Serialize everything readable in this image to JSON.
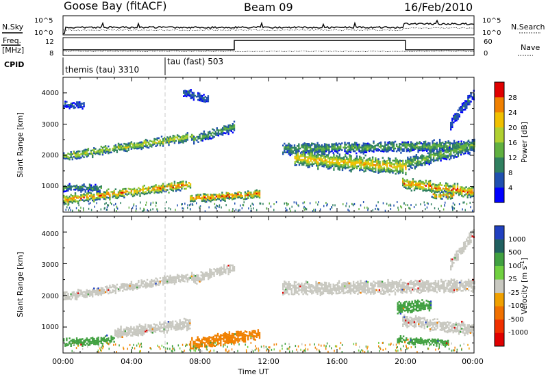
{
  "header": {
    "station": "Goose Bay (fitACF)",
    "beam": "Beam 09",
    "date": "16/Feb/2010"
  },
  "strips": {
    "nsky_label": "N.Sky",
    "nsearch_label": "N.Search",
    "freq_label_line1": "Freq.",
    "freq_label_line2": "[MHz]",
    "nave_label": "Nave",
    "cpid_label": "CPID",
    "noise_ticks": [
      "10^5",
      "10^0"
    ],
    "freq_ticks": [
      "12",
      "8"
    ],
    "nave_ticks": [
      "60",
      "0"
    ],
    "cpid_segments": [
      {
        "label": "themis (tau) 3310",
        "start_hour": 0,
        "end_hour": 6
      },
      {
        "label": "tau (fast) 503",
        "start_hour": 6,
        "end_hour": 24
      }
    ],
    "nave_series": [
      {
        "start_hour": 0,
        "end_hour": 10,
        "level": 18
      },
      {
        "start_hour": 10,
        "end_hour": 20,
        "level": 52
      },
      {
        "start_hour": 20,
        "end_hour": 24,
        "level": 18
      }
    ]
  },
  "chart_data": [
    {
      "type": "heatmap",
      "panel": "power",
      "ylabel": "Slant Range [km]",
      "yticks": [
        "1000",
        "2000",
        "3000",
        "4000"
      ],
      "ylim": [
        180,
        4500
      ],
      "xlim": [
        0,
        24
      ],
      "colorbar_label": "Power [dB]",
      "colorbar_ticks": [
        "4",
        "8",
        "12",
        "16",
        "20",
        "24",
        "28"
      ],
      "colorbar_colors": [
        "#0000ff",
        "#2050b0",
        "#308060",
        "#60b040",
        "#b0d030",
        "#f0c000",
        "#f08000",
        "#e00000"
      ],
      "bands": [
        {
          "start_hour": 0.0,
          "end_hour": 7.6,
          "range_start": 1950,
          "range_end": 2600,
          "half_width": 110,
          "max_value": 20
        },
        {
          "start_hour": 7.6,
          "end_hour": 10.0,
          "range_start": 2500,
          "range_end": 2900,
          "half_width": 130,
          "max_value": 14
        },
        {
          "start_hour": 0.0,
          "end_hour": 7.4,
          "range_start": 550,
          "range_end": 1050,
          "half_width": 120,
          "max_value": 28
        },
        {
          "start_hour": 0.0,
          "end_hour": 2.2,
          "range_start": 950,
          "range_end": 950,
          "half_width": 90,
          "max_value": 12
        },
        {
          "start_hour": 7.4,
          "end_hour": 11.5,
          "range_start": 600,
          "range_end": 750,
          "half_width": 110,
          "max_value": 28
        },
        {
          "start_hour": 12.8,
          "end_hour": 24.0,
          "range_start": 2200,
          "range_end": 2300,
          "half_width": 150,
          "max_value": 14
        },
        {
          "start_hour": 13.5,
          "end_hour": 20.0,
          "range_start": 1900,
          "range_end": 1600,
          "half_width": 220,
          "max_value": 24
        },
        {
          "start_hour": 20.0,
          "end_hour": 24.0,
          "range_start": 1700,
          "range_end": 2300,
          "half_width": 180,
          "max_value": 16
        },
        {
          "start_hour": 19.8,
          "end_hour": 24.0,
          "range_start": 1100,
          "range_end": 800,
          "half_width": 150,
          "max_value": 28
        },
        {
          "start_hour": 21.5,
          "end_hour": 22.8,
          "range_start": 700,
          "range_end": 700,
          "half_width": 80,
          "max_value": 28
        },
        {
          "start_hour": 22.6,
          "end_hour": 24.0,
          "range_start": 3000,
          "range_end": 4000,
          "half_width": 150,
          "max_value": 8
        },
        {
          "start_hour": 0.0,
          "end_hour": 1.2,
          "range_start": 3600,
          "range_end": 3600,
          "half_width": 90,
          "max_value": 8
        },
        {
          "start_hour": 7.0,
          "end_hour": 8.5,
          "range_start": 4000,
          "range_end": 3800,
          "half_width": 120,
          "max_value": 8
        }
      ]
    },
    {
      "type": "heatmap",
      "panel": "velocity",
      "ylabel": "Slant Range [km]",
      "xlabel": "Time UT",
      "yticks": [
        "1000",
        "2000",
        "3000",
        "4000"
      ],
      "ylim": [
        180,
        4500
      ],
      "xlim": [
        0,
        24
      ],
      "xticks": [
        "00:00",
        "04:00",
        "08:00",
        "12:00",
        "16:00",
        "20:00",
        "00:00"
      ],
      "colorbar_label": "Velocity [m s^-1]",
      "colorbar_ticks": [
        "1000",
        "500",
        "100",
        "25",
        "-25",
        "-100",
        "-500",
        "-1000"
      ],
      "colorbar_colors": [
        "#2040c0",
        "#206060",
        "#40a040",
        "#70d040",
        "#c8c8c0",
        "#f0a000",
        "#f07000",
        "#f03000",
        "#e00000"
      ],
      "bands": [
        {
          "start_hour": 0.0,
          "end_hour": 7.6,
          "range_start": 1950,
          "range_end": 2600,
          "half_width": 110,
          "value": 0
        },
        {
          "start_hour": 7.6,
          "end_hour": 10.0,
          "range_start": 2500,
          "range_end": 2900,
          "half_width": 130,
          "value": 0
        },
        {
          "start_hour": 0.0,
          "end_hour": 3.0,
          "range_start": 500,
          "range_end": 600,
          "half_width": 100,
          "value": 150
        },
        {
          "start_hour": 3.0,
          "end_hour": 7.4,
          "range_start": 800,
          "range_end": 1100,
          "half_width": 140,
          "value": 0
        },
        {
          "start_hour": 7.4,
          "end_hour": 11.5,
          "range_start": 450,
          "range_end": 800,
          "half_width": 150,
          "value": -200
        },
        {
          "start_hour": 12.8,
          "end_hour": 24.0,
          "range_start": 2200,
          "range_end": 2300,
          "half_width": 180,
          "value": 0
        },
        {
          "start_hour": 19.8,
          "end_hour": 24.0,
          "range_start": 1200,
          "range_end": 900,
          "half_width": 160,
          "value": 0
        },
        {
          "start_hour": 19.5,
          "end_hour": 21.5,
          "range_start": 1600,
          "range_end": 1700,
          "half_width": 160,
          "value": 150
        },
        {
          "start_hour": 19.5,
          "end_hour": 22.5,
          "range_start": 600,
          "range_end": 500,
          "half_width": 90,
          "value": 150
        },
        {
          "start_hour": 22.6,
          "end_hour": 24.0,
          "range_start": 3000,
          "range_end": 4000,
          "half_width": 150,
          "value": 0
        }
      ]
    }
  ]
}
